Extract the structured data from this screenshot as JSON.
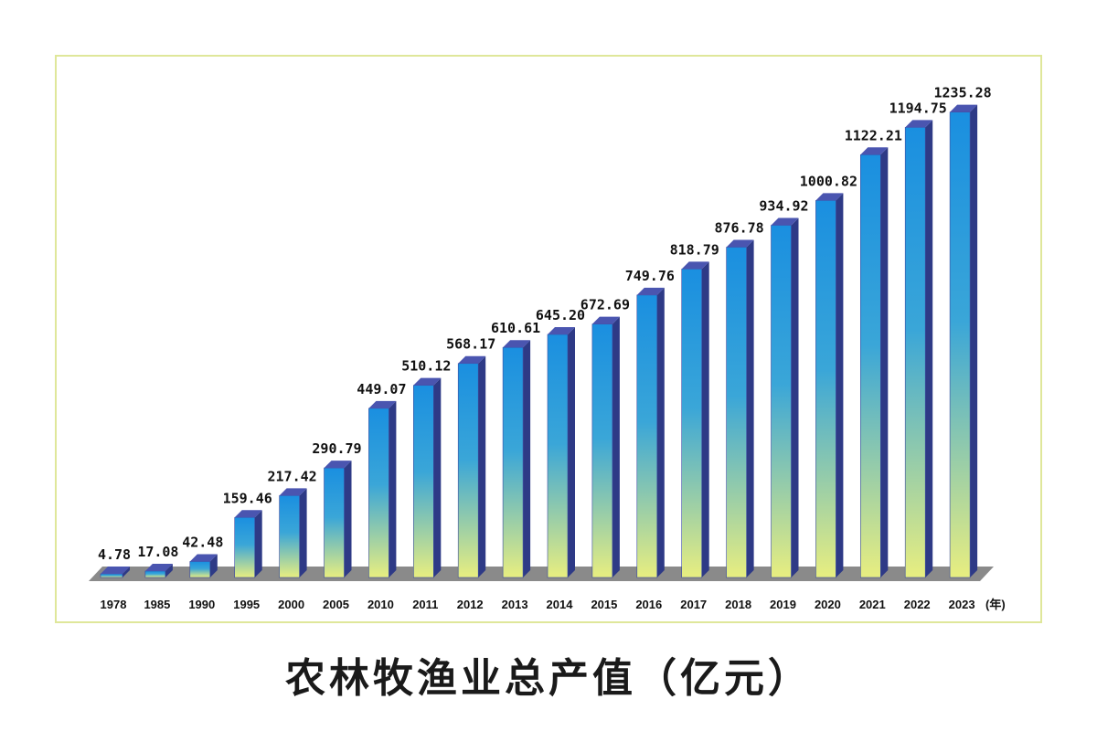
{
  "chart_data": {
    "type": "bar",
    "title": "农林牧渔业总产值（亿元）",
    "xunit": "(年)",
    "categories": [
      "1978",
      "1985",
      "1990",
      "1995",
      "2000",
      "2005",
      "2010",
      "2011",
      "2012",
      "2013",
      "2014",
      "2015",
      "2016",
      "2017",
      "2018",
      "2019",
      "2020",
      "2021",
      "2022",
      "2023"
    ],
    "values": [
      4.78,
      17.08,
      42.48,
      159.46,
      217.42,
      290.79,
      449.07,
      510.12,
      568.17,
      610.61,
      645.2,
      672.69,
      749.76,
      818.79,
      876.78,
      934.92,
      1000.82,
      1122.21,
      1194.75,
      1235.28
    ],
    "value_labels": [
      "4.78",
      "17.08",
      "42.48",
      "159.46",
      "217.42",
      "290.79",
      "449.07",
      "510.12",
      "568.17",
      "610.61",
      "645.20",
      "672.69",
      "749.76",
      "818.79",
      "876.78",
      "934.92",
      "1000.82",
      "1122.21",
      "1194.75",
      "1235.28"
    ],
    "ylim": [
      0,
      1300
    ],
    "colors": {
      "bar_top_face": "#1a8fe0",
      "bar_bottom_face": "#e8ee80",
      "bar_side": "#2e3a86",
      "bar_cap": "#4a55b0",
      "floor": "#8a8a8a",
      "frame": "#dfe79a"
    }
  }
}
